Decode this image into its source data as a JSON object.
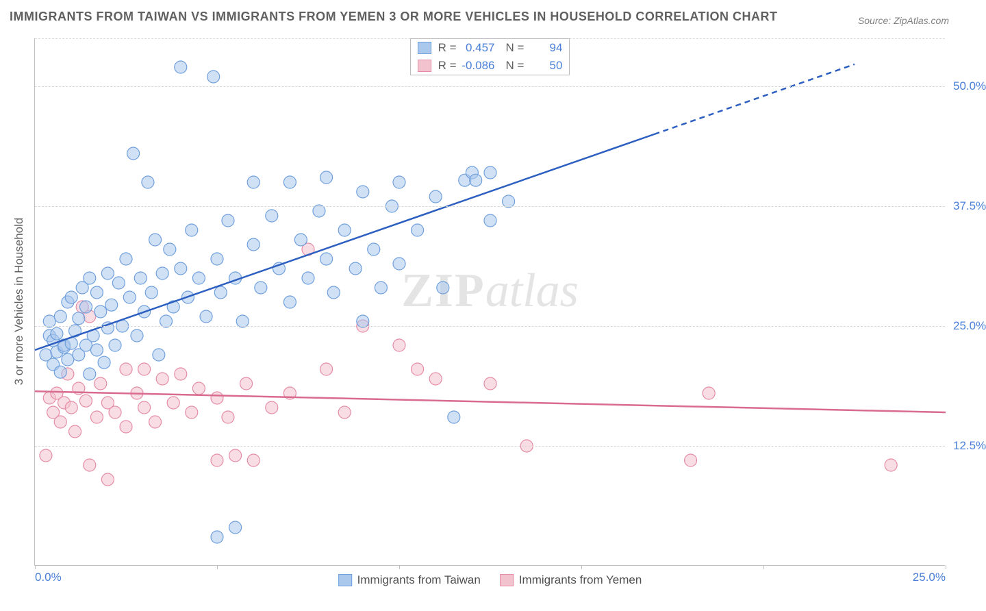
{
  "title": "IMMIGRANTS FROM TAIWAN VS IMMIGRANTS FROM YEMEN 3 OR MORE VEHICLES IN HOUSEHOLD CORRELATION CHART",
  "source": "Source: ZipAtlas.com",
  "ylabel": "3 or more Vehicles in Household",
  "watermark_a": "ZIP",
  "watermark_b": "atlas",
  "chart": {
    "type": "scatter",
    "background_color": "#ffffff",
    "grid_color": "#d8d8d8",
    "axis_color": "#c0c0c0",
    "tick_label_color": "#4a7fd8",
    "xlim": [
      0,
      25
    ],
    "ylim": [
      0,
      55
    ],
    "x_ticks": [
      0,
      5,
      10,
      15,
      20,
      25
    ],
    "x_tick_labels": [
      "0.0%",
      "",
      "",
      "",
      "",
      "25.0%"
    ],
    "y_ticks": [
      12.5,
      25.0,
      37.5,
      50.0
    ],
    "y_tick_labels": [
      "12.5%",
      "25.0%",
      "37.5%",
      "50.0%"
    ],
    "marker_radius": 9,
    "marker_opacity": 0.55,
    "line_width": 2.5,
    "series": [
      {
        "name": "Immigrants from Taiwan",
        "color_fill": "#aac7ec",
        "color_stroke": "#6f9fdc",
        "line_color": "#2c5fc0",
        "R": "0.457",
        "N": "94",
        "trend": {
          "x1": 0,
          "y1": 22.5,
          "x2": 17.0,
          "y2": 45.0,
          "ext_x2": 22.5,
          "ext_y2": 52.3
        },
        "points": [
          [
            0.3,
            22.0
          ],
          [
            0.4,
            24.0
          ],
          [
            0.4,
            25.5
          ],
          [
            0.5,
            21.0
          ],
          [
            0.5,
            23.5
          ],
          [
            0.6,
            22.3
          ],
          [
            0.6,
            24.2
          ],
          [
            0.7,
            20.2
          ],
          [
            0.7,
            26.0
          ],
          [
            0.8,
            22.8
          ],
          [
            0.8,
            23.0
          ],
          [
            0.9,
            21.5
          ],
          [
            0.9,
            27.5
          ],
          [
            1.0,
            23.2
          ],
          [
            1.0,
            28.0
          ],
          [
            1.1,
            24.5
          ],
          [
            1.2,
            22.0
          ],
          [
            1.2,
            25.8
          ],
          [
            1.3,
            29.0
          ],
          [
            1.4,
            23.0
          ],
          [
            1.4,
            27.0
          ],
          [
            1.5,
            20.0
          ],
          [
            1.5,
            30.0
          ],
          [
            1.6,
            24.0
          ],
          [
            1.7,
            22.5
          ],
          [
            1.7,
            28.5
          ],
          [
            1.8,
            26.5
          ],
          [
            1.9,
            21.2
          ],
          [
            2.0,
            30.5
          ],
          [
            2.0,
            24.8
          ],
          [
            2.1,
            27.2
          ],
          [
            2.2,
            23.0
          ],
          [
            2.3,
            29.5
          ],
          [
            2.4,
            25.0
          ],
          [
            2.5,
            32.0
          ],
          [
            2.6,
            28.0
          ],
          [
            2.7,
            43.0
          ],
          [
            2.8,
            24.0
          ],
          [
            2.9,
            30.0
          ],
          [
            3.0,
            26.5
          ],
          [
            3.1,
            40.0
          ],
          [
            3.2,
            28.5
          ],
          [
            3.3,
            34.0
          ],
          [
            3.4,
            22.0
          ],
          [
            3.5,
            30.5
          ],
          [
            3.6,
            25.5
          ],
          [
            3.7,
            33.0
          ],
          [
            3.8,
            27.0
          ],
          [
            4.0,
            31.0
          ],
          [
            4.0,
            52.0
          ],
          [
            4.2,
            28.0
          ],
          [
            4.3,
            35.0
          ],
          [
            4.5,
            30.0
          ],
          [
            4.7,
            26.0
          ],
          [
            4.9,
            51.0
          ],
          [
            5.0,
            32.0
          ],
          [
            5.0,
            3.0
          ],
          [
            5.1,
            28.5
          ],
          [
            5.3,
            36.0
          ],
          [
            5.5,
            30.0
          ],
          [
            5.5,
            4.0
          ],
          [
            5.7,
            25.5
          ],
          [
            6.0,
            33.5
          ],
          [
            6.0,
            40.0
          ],
          [
            6.2,
            29.0
          ],
          [
            6.5,
            36.5
          ],
          [
            6.7,
            31.0
          ],
          [
            7.0,
            40.0
          ],
          [
            7.0,
            27.5
          ],
          [
            7.3,
            34.0
          ],
          [
            7.5,
            30.0
          ],
          [
            7.8,
            37.0
          ],
          [
            8.0,
            32.0
          ],
          [
            8.0,
            40.5
          ],
          [
            8.2,
            28.5
          ],
          [
            8.5,
            35.0
          ],
          [
            8.8,
            31.0
          ],
          [
            9.0,
            39.0
          ],
          [
            9.0,
            25.5
          ],
          [
            9.3,
            33.0
          ],
          [
            9.5,
            29.0
          ],
          [
            9.8,
            37.5
          ],
          [
            10.0,
            31.5
          ],
          [
            10.0,
            40.0
          ],
          [
            10.5,
            35.0
          ],
          [
            11.0,
            38.5
          ],
          [
            11.2,
            29.0
          ],
          [
            11.5,
            15.5
          ],
          [
            11.8,
            40.2
          ],
          [
            12.0,
            41.0
          ],
          [
            12.1,
            40.2
          ],
          [
            12.5,
            36.0
          ],
          [
            12.5,
            41.0
          ],
          [
            13.0,
            38.0
          ]
        ]
      },
      {
        "name": "Immigrants from Yemen",
        "color_fill": "#f2c2ce",
        "color_stroke": "#e58ba5",
        "line_color": "#d86b8f",
        "R": "-0.086",
        "N": "50",
        "trend": {
          "x1": 0,
          "y1": 18.2,
          "x2": 25.0,
          "y2": 16.0
        },
        "points": [
          [
            0.3,
            11.5
          ],
          [
            0.4,
            17.5
          ],
          [
            0.5,
            16.0
          ],
          [
            0.6,
            18.0
          ],
          [
            0.7,
            15.0
          ],
          [
            0.8,
            17.0
          ],
          [
            0.9,
            20.0
          ],
          [
            1.0,
            16.5
          ],
          [
            1.1,
            14.0
          ],
          [
            1.2,
            18.5
          ],
          [
            1.3,
            27.0
          ],
          [
            1.4,
            17.2
          ],
          [
            1.5,
            26.0
          ],
          [
            1.5,
            10.5
          ],
          [
            1.7,
            15.5
          ],
          [
            1.8,
            19.0
          ],
          [
            2.0,
            17.0
          ],
          [
            2.0,
            9.0
          ],
          [
            2.2,
            16.0
          ],
          [
            2.5,
            20.5
          ],
          [
            2.5,
            14.5
          ],
          [
            2.8,
            18.0
          ],
          [
            3.0,
            16.5
          ],
          [
            3.0,
            20.5
          ],
          [
            3.3,
            15.0
          ],
          [
            3.5,
            19.5
          ],
          [
            3.8,
            17.0
          ],
          [
            4.0,
            20.0
          ],
          [
            4.3,
            16.0
          ],
          [
            4.5,
            18.5
          ],
          [
            5.0,
            11.0
          ],
          [
            5.0,
            17.5
          ],
          [
            5.3,
            15.5
          ],
          [
            5.5,
            11.5
          ],
          [
            5.8,
            19.0
          ],
          [
            6.0,
            11.0
          ],
          [
            6.5,
            16.5
          ],
          [
            7.0,
            18.0
          ],
          [
            7.5,
            33.0
          ],
          [
            8.0,
            20.5
          ],
          [
            8.5,
            16.0
          ],
          [
            9.0,
            25.0
          ],
          [
            10.0,
            23.0
          ],
          [
            10.5,
            20.5
          ],
          [
            11.0,
            19.5
          ],
          [
            12.5,
            19.0
          ],
          [
            13.5,
            12.5
          ],
          [
            18.0,
            11.0
          ],
          [
            18.5,
            18.0
          ],
          [
            23.5,
            10.5
          ]
        ]
      }
    ]
  }
}
